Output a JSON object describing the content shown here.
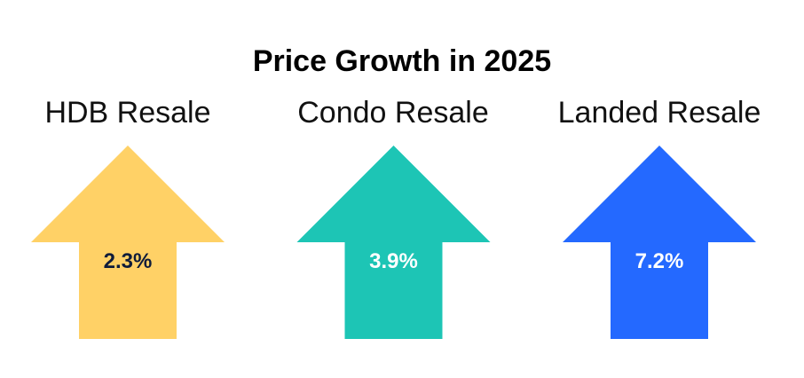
{
  "chart_data": {
    "type": "infographic-arrows",
    "title": "Price Growth in 2025",
    "categories": [
      "HDB Resale",
      "Condo Resale",
      "Landed Resale"
    ],
    "values": [
      2.3,
      3.9,
      7.2
    ],
    "value_labels": [
      "2.3%",
      "3.9%",
      "7.2%"
    ],
    "colors": [
      "#FFD166",
      "#1DC5B5",
      "#2469FF"
    ],
    "label_colors": [
      "#0F1C3A",
      "#FFFFFF",
      "#FFFFFF"
    ]
  }
}
